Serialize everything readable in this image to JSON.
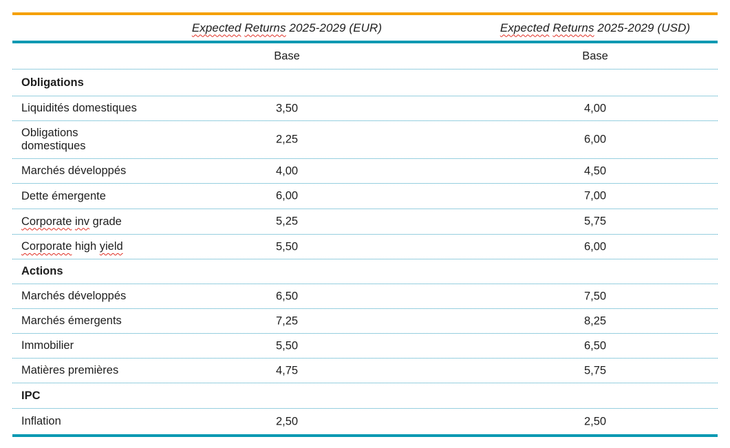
{
  "theme": {
    "orange": "#F5A000",
    "teal": "#0699B2",
    "dotted": "#2E9FBF",
    "squiggle": "#E02B20",
    "ink": "#1E1E1E"
  },
  "header": {
    "eur": {
      "label": "Expected Returns 2025-2029 (EUR)",
      "parts": [
        {
          "text": "Expected",
          "misspelled": true
        },
        {
          "text": "Returns",
          "misspelled": true
        },
        {
          "text": "2025-2029 (EUR)",
          "misspelled": false
        }
      ]
    },
    "usd": {
      "label": "Expected Returns 2025-2029 (USD)",
      "parts": [
        {
          "text": "Expected",
          "misspelled": true
        },
        {
          "text": "Returns",
          "misspelled": true
        },
        {
          "text": "2025-2029 (USD)",
          "misspelled": false
        }
      ]
    }
  },
  "subheader": {
    "eur": "Base",
    "usd": "Base"
  },
  "rows": [
    {
      "type": "section",
      "label": "Obligations"
    },
    {
      "type": "data",
      "label": "Liquidités domestiques",
      "eur": "3,50",
      "usd": "4,00"
    },
    {
      "type": "data",
      "label": "Obligations domestiques",
      "label_lines": [
        "Obligations",
        "domestiques"
      ],
      "eur": "2,25",
      "usd": "6,00"
    },
    {
      "type": "data",
      "label": "Marchés développés",
      "eur": "4,00",
      "usd": "4,50"
    },
    {
      "type": "data",
      "label": "Dette émergente",
      "eur": "6,00",
      "usd": "7,00"
    },
    {
      "type": "data",
      "label": "Corporate inv grade",
      "parts": [
        {
          "text": "Corporate",
          "misspelled": true
        },
        {
          "text": "inv",
          "misspelled": true
        },
        {
          "text": "grade",
          "misspelled": false
        }
      ],
      "eur": "5,25",
      "usd": "5,75"
    },
    {
      "type": "data",
      "label": "Corporate high yield",
      "parts": [
        {
          "text": "Corporate",
          "misspelled": true
        },
        {
          "text": "high",
          "misspelled": false
        },
        {
          "text": "yield",
          "misspelled": true
        }
      ],
      "eur": "5,50",
      "usd": "6,00"
    },
    {
      "type": "section",
      "label": "Actions"
    },
    {
      "type": "data",
      "label": "Marchés développés",
      "eur": "6,50",
      "usd": "7,50"
    },
    {
      "type": "data",
      "label": "Marchés émergents",
      "eur": "7,25",
      "usd": "8,25"
    },
    {
      "type": "data",
      "label": "Immobilier",
      "eur": "5,50",
      "usd": "6,50"
    },
    {
      "type": "data",
      "label": "Matières premières",
      "eur": "4,75",
      "usd": "5,75"
    },
    {
      "type": "section",
      "label": "IPC"
    },
    {
      "type": "data",
      "label": "Inflation",
      "eur": "2,50",
      "usd": "2,50"
    }
  ]
}
